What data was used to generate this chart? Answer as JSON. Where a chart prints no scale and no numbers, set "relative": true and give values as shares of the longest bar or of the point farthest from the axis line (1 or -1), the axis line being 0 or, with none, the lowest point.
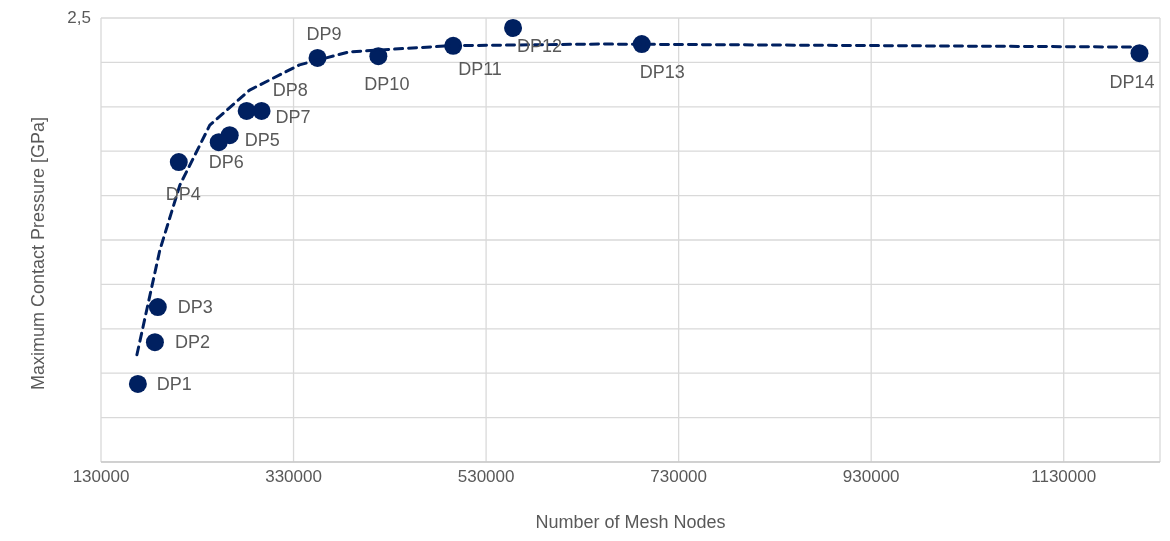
{
  "chart_data": {
    "type": "scatter",
    "xlabel": "Number of Mesh Nodes",
    "ylabel": "Maximum Contact Pressure [GPa]",
    "relative": true,
    "xlim": [
      130000,
      1230000
    ],
    "xticks": [
      130000,
      330000,
      530000,
      730000,
      930000,
      1130000
    ],
    "grid": true,
    "series": [
      {
        "marker": "circle",
        "color": "#002060",
        "x": [
          168300,
          186000,
          189000,
          210800,
          263700,
          252300,
          296800,
          281300,
          354900,
          418100,
          495800,
          558000,
          691700,
          1208700
        ],
        "values": [
          0.18,
          0.276,
          0.357,
          0.691,
          0.753,
          0.737,
          0.809,
          0.809,
          0.931,
          0.935,
          0.959,
          1,
          0.963,
          0.942
        ]
      },
      {
        "type": "line",
        "marker": "none",
        "color": "#002060",
        "line_style": "dashed",
        "x": [
          167300,
          191100,
          211900,
          243000,
          284400,
          336200,
          388000,
          491700,
          647100,
          1206600
        ],
        "values": [
          0.247,
          0.488,
          0.638,
          0.776,
          0.857,
          0.915,
          0.945,
          0.959,
          0.963,
          0.956
        ]
      }
    ],
    "annotations": [
      {
        "text": "DP1",
        "x": 168300,
        "y": 0.18
      },
      {
        "text": "DP2",
        "x": 186000,
        "y": 0.276
      },
      {
        "text": "DP3",
        "x": 189000,
        "y": 0.357
      },
      {
        "text": "DP4",
        "x": 210800,
        "y": 0.691
      },
      {
        "text": "DP5",
        "x": 263700,
        "y": 0.753
      },
      {
        "text": "DP6",
        "x": 252300,
        "y": 0.737
      },
      {
        "text": "DP7",
        "x": 296800,
        "y": 0.809
      },
      {
        "text": "DP8",
        "x": 281300,
        "y": 0.809
      },
      {
        "text": "DP9",
        "x": 354900,
        "y": 0.931
      },
      {
        "text": "DP10",
        "x": 418100,
        "y": 0.935
      },
      {
        "text": "DP11",
        "x": 495800,
        "y": 0.959
      },
      {
        "text": "DP12",
        "x": 558000,
        "y": 1
      },
      {
        "text": "DP13",
        "x": 691700,
        "y": 0.963
      },
      {
        "text": "DP14",
        "x": 1208700,
        "y": 0.942
      },
      "2,5"
    ]
  }
}
